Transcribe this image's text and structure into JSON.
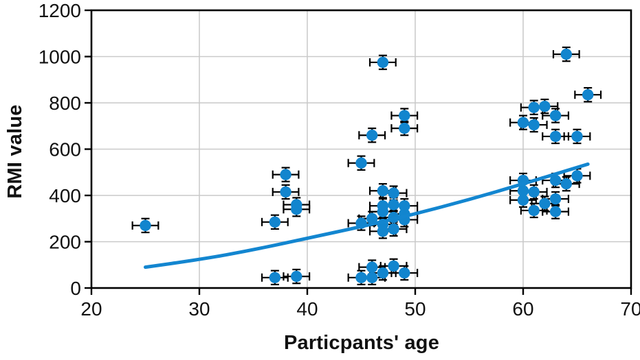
{
  "figure": {
    "background": "#ffffff",
    "frame_color": "#000000",
    "grid_color": "#c9c9c9"
  },
  "chart_data": {
    "type": "scatter",
    "title": "",
    "xlabel": "Particpants' age",
    "ylabel": "RMI value",
    "xlim": [
      20,
      70
    ],
    "ylim": [
      0,
      1200
    ],
    "x_ticks": [
      20,
      30,
      40,
      50,
      60,
      70
    ],
    "y_ticks": [
      0,
      200,
      400,
      600,
      800,
      1000,
      1200
    ],
    "grid": true,
    "legend": "none",
    "marker_color": "#1285ce",
    "line_color": "#1386d0",
    "errorbar_color": "#000000",
    "grid_color": "#c9c9c9",
    "x_error": 1.2,
    "y_error": 30,
    "points": [
      [
        25,
        270
      ],
      [
        37,
        45
      ],
      [
        39,
        50
      ],
      [
        37,
        285
      ],
      [
        38,
        415
      ],
      [
        38,
        490
      ],
      [
        39,
        360
      ],
      [
        39,
        340
      ],
      [
        45,
        45
      ],
      [
        46,
        45
      ],
      [
        46,
        90
      ],
      [
        47,
        65
      ],
      [
        48,
        95
      ],
      [
        49,
        65
      ],
      [
        45,
        280
      ],
      [
        46,
        300
      ],
      [
        47,
        420
      ],
      [
        47,
        355
      ],
      [
        47,
        330
      ],
      [
        47,
        275
      ],
      [
        47,
        245
      ],
      [
        48,
        410
      ],
      [
        48,
        360
      ],
      [
        48,
        305
      ],
      [
        48,
        255
      ],
      [
        49,
        355
      ],
      [
        49,
        320
      ],
      [
        49,
        295
      ],
      [
        45,
        540
      ],
      [
        46,
        660
      ],
      [
        47,
        975
      ],
      [
        49,
        745
      ],
      [
        49,
        690
      ],
      [
        60,
        715
      ],
      [
        61,
        705
      ],
      [
        61,
        780
      ],
      [
        62,
        785
      ],
      [
        63,
        745
      ],
      [
        63,
        655
      ],
      [
        64,
        1010
      ],
      [
        65,
        655
      ],
      [
        66,
        835
      ],
      [
        60,
        465
      ],
      [
        60,
        420
      ],
      [
        60,
        380
      ],
      [
        61,
        415
      ],
      [
        61,
        335
      ],
      [
        62,
        365
      ],
      [
        63,
        465
      ],
      [
        63,
        385
      ],
      [
        63,
        330
      ],
      [
        64,
        450
      ],
      [
        65,
        485
      ]
    ],
    "trend_line": {
      "x": [
        25,
        30,
        35,
        40,
        45,
        50,
        55,
        60,
        66
      ],
      "y": [
        90,
        122,
        165,
        215,
        265,
        320,
        382,
        450,
        535
      ]
    }
  }
}
